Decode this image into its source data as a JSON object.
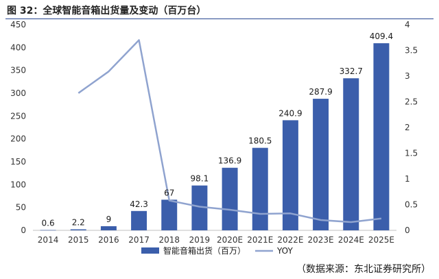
{
  "figure": {
    "title": "图 32：全球智能音箱出货量及变动（百万台）",
    "source": "（数据来源：东北证券研究所）"
  },
  "chart_data": {
    "type": "bar",
    "categories": [
      "2014",
      "2015",
      "2016",
      "2017",
      "2018",
      "2019",
      "2020E",
      "2021E",
      "2022E",
      "2023E",
      "2024E",
      "2025E"
    ],
    "series": [
      {
        "name": "智能音箱出货（百万）",
        "type": "bar",
        "axis": "left",
        "values": [
          0.6,
          2.2,
          9,
          42.3,
          67,
          98.1,
          136.9,
          180.5,
          240.9,
          287.9,
          332.7,
          409.4
        ],
        "labels": [
          "0.6",
          "2.2",
          "9",
          "42.3",
          "67",
          "98.1",
          "136.9",
          "180.5",
          "240.9",
          "287.9",
          "332.7",
          "409.4"
        ],
        "color": "#3b5eab"
      },
      {
        "name": "YOY",
        "type": "line",
        "axis": "right",
        "values": [
          null,
          2.67,
          3.09,
          3.7,
          0.58,
          0.46,
          0.4,
          0.32,
          0.33,
          0.2,
          0.16,
          0.23
        ],
        "color": "#8fa3cf"
      }
    ],
    "y_left": {
      "min": 0,
      "max": 450,
      "ticks": [
        "0",
        "50",
        "100",
        "150",
        "200",
        "250",
        "300",
        "350",
        "400",
        "450"
      ]
    },
    "y_right": {
      "min": 0,
      "max": 4,
      "ticks": [
        "0",
        "0.5",
        "1",
        "1.5",
        "2",
        "2.5",
        "3",
        "3.5",
        "4"
      ]
    },
    "grid": false,
    "legend_position": "bottom"
  }
}
